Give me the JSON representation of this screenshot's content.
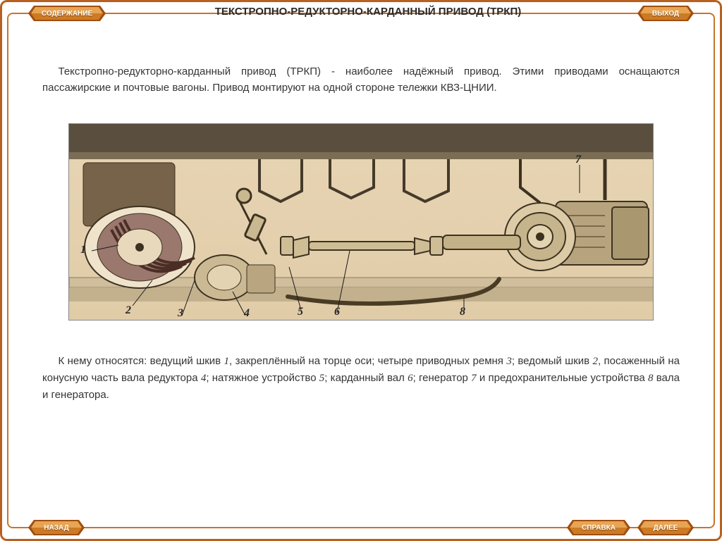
{
  "nav": {
    "contents": "СОДЕРЖАНИЕ",
    "exit": "ВЫХОД",
    "back": "НАЗАД",
    "help": "СПРАВКА",
    "next": "ДАЛЕЕ"
  },
  "title": "ТЕКСТРОПНО-РЕДУКТОРНО-КАРДАННЫЙ ПРИВОД (ТРКП)",
  "intro": "Текстропно-редукторно-карданный привод (ТРКП) - наиболее надёжный привод. Этими приводами оснащаются пассажирские и почтовые вагоны. Привод монтируют на одной стороне тележки  КВЗ-ЦНИИ.",
  "legend_parts": [
    {
      "pre": "К нему относятся: ведущий шкив ",
      "num": "1",
      "post": ", закреплённый на торце оси; четыре приводных ремня "
    },
    {
      "num": "3",
      "post": "; ведомый шкив "
    },
    {
      "num": "2",
      "post": ", посаженный на конусную часть вала редуктора "
    },
    {
      "num": "4",
      "post": "; натяжное устройство "
    },
    {
      "num": "5",
      "post": "; карданный вал "
    },
    {
      "num": "6",
      "post": "; генератор "
    },
    {
      "num": "7",
      "post": " и предохранительные устройства "
    },
    {
      "num": "8",
      "post": " вала и генератора."
    }
  ],
  "callouts": {
    "1": "1",
    "2": "2",
    "3": "3",
    "4": "4",
    "5": "5",
    "6": "6",
    "7": "7",
    "8": "8"
  },
  "colors": {
    "frame_outer": "#b86020",
    "frame_inner": "#c6752c",
    "btn_top": "#d98a3a",
    "btn_side": "#a04e10",
    "figure_bg_top": "#f0e2ca",
    "figure_bg_bot": "#e1cca8",
    "text": "#353535",
    "title": "#2a2a2a"
  }
}
